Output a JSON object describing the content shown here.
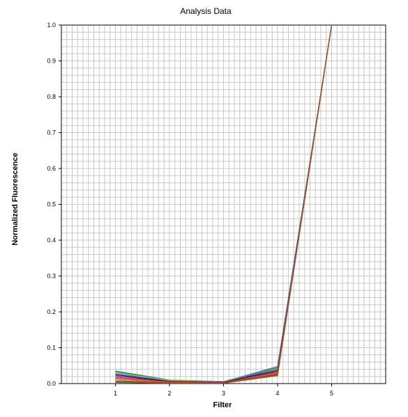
{
  "chart_data": {
    "type": "line",
    "title": "Analysis Data",
    "xlabel": "Filter",
    "ylabel": "Normalized Fluorescence",
    "x": [
      1,
      2,
      3,
      4,
      5
    ],
    "x_ticks": [
      "1",
      "2",
      "3",
      "4",
      "5"
    ],
    "y_ticks": [
      "0.0",
      "0.1",
      "0.2",
      "0.3",
      "0.4",
      "0.5",
      "0.6",
      "0.7",
      "0.8",
      "0.9",
      "1.0"
    ],
    "xlim": [
      0,
      6
    ],
    "ylim": [
      0,
      1
    ],
    "grid": true,
    "legend": false,
    "series": [
      {
        "color": "#2e8b57",
        "values": [
          0.035,
          0.01,
          0.006,
          0.045,
          1.0
        ]
      },
      {
        "color": "#4682b4",
        "values": [
          0.033,
          0.008,
          0.005,
          0.048,
          1.0
        ]
      },
      {
        "color": "#9acd32",
        "values": [
          0.03,
          0.009,
          0.006,
          0.04,
          1.0
        ]
      },
      {
        "color": "#708090",
        "values": [
          0.028,
          0.007,
          0.004,
          0.043,
          1.0
        ]
      },
      {
        "color": "#191970",
        "values": [
          0.025,
          0.006,
          0.004,
          0.038,
          1.0
        ]
      },
      {
        "color": "#8b008b",
        "values": [
          0.022,
          0.005,
          0.003,
          0.035,
          1.0
        ]
      },
      {
        "color": "#b22222",
        "values": [
          0.018,
          0.004,
          0.003,
          0.032,
          1.0
        ]
      },
      {
        "color": "#cd5c5c",
        "values": [
          0.015,
          0.004,
          0.002,
          0.03,
          1.0
        ]
      },
      {
        "color": "#d2691e",
        "values": [
          0.012,
          0.003,
          0.002,
          0.028,
          1.0
        ]
      },
      {
        "color": "#8b4513",
        "values": [
          0.008,
          0.002,
          0.002,
          0.026,
          1.0
        ]
      },
      {
        "color": "#556b2f",
        "values": [
          0.005,
          0.002,
          0.001,
          0.024,
          1.0
        ]
      },
      {
        "color": "#a0522d",
        "values": [
          0.003,
          0.001,
          0.001,
          0.022,
          1.0
        ]
      }
    ]
  }
}
